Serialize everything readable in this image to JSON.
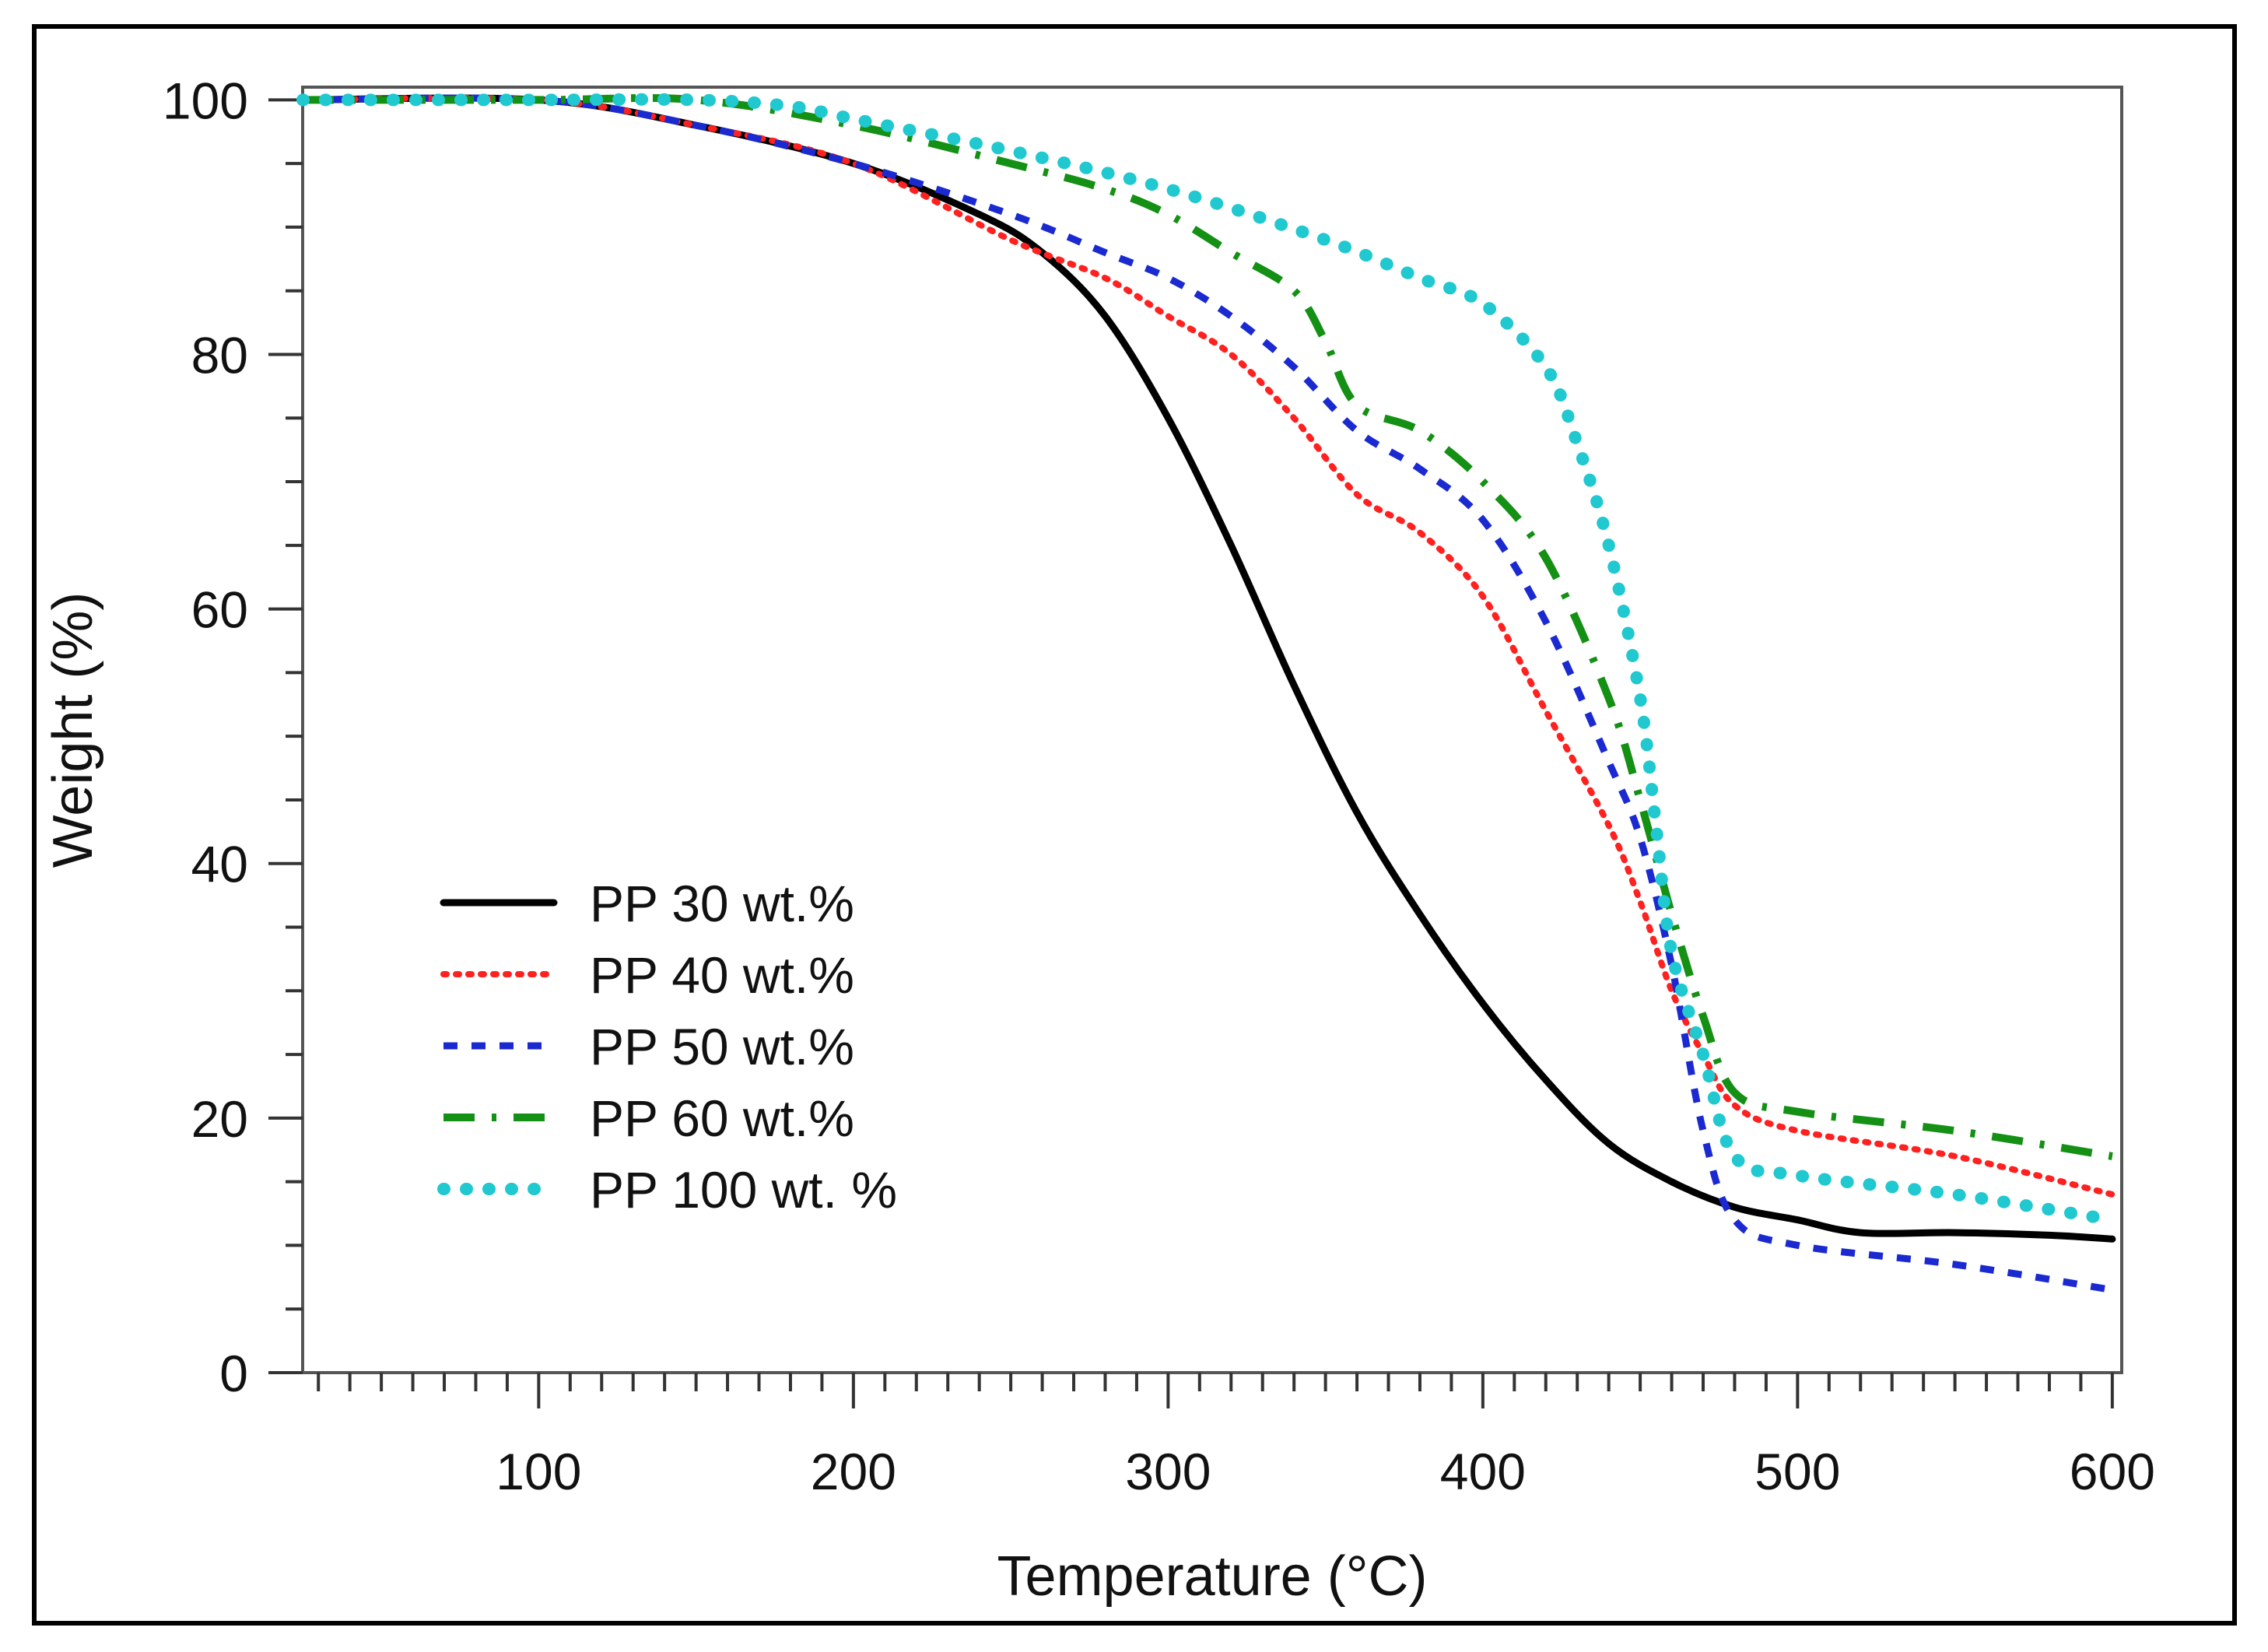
{
  "chart_data": {
    "type": "line",
    "title": "",
    "xlabel": "Temperature (°C)",
    "ylabel": "Weight (%)",
    "xlim": [
      25,
      603
    ],
    "ylim": [
      0,
      101
    ],
    "xticks": [
      100,
      200,
      300,
      400,
      500,
      600
    ],
    "yticks": [
      0,
      20,
      40,
      60,
      80,
      100
    ],
    "grid": false,
    "legend_position": "bottom-left",
    "series": [
      {
        "name": "PP 30 wt.%",
        "color": "#000000",
        "style": "solid",
        "x": [
          25,
          100,
          150,
          200,
          240,
          260,
          280,
          300,
          320,
          340,
          360,
          380,
          400,
          420,
          440,
          460,
          480,
          500,
          520,
          550,
          580,
          600
        ],
        "y": [
          100,
          100,
          98,
          95,
          91,
          88,
          83,
          75,
          65,
          54,
          44,
          36,
          29,
          23,
          18,
          15,
          13,
          12,
          11,
          11,
          10.8,
          10.5
        ]
      },
      {
        "name": "PP 40 wt.%",
        "color": "#ff2020",
        "style": "dotted",
        "x": [
          25,
          100,
          150,
          200,
          250,
          280,
          300,
          320,
          340,
          360,
          380,
          400,
          420,
          440,
          450,
          460,
          470,
          480,
          500,
          550,
          600
        ],
        "y": [
          100,
          100,
          98,
          95,
          89,
          86,
          83,
          80,
          75,
          69,
          66,
          61,
          52,
          43,
          37,
          30,
          25,
          21,
          19,
          17,
          14
        ]
      },
      {
        "name": "PP 50 wt.%",
        "color": "#1a2ad0",
        "style": "dashed",
        "x": [
          25,
          100,
          150,
          200,
          250,
          280,
          300,
          320,
          340,
          360,
          380,
          400,
          420,
          440,
          450,
          460,
          470,
          480,
          500,
          550,
          600
        ],
        "y": [
          100,
          100,
          98,
          95,
          91,
          88,
          86,
          83,
          79,
          74,
          71,
          67,
          59,
          48,
          42,
          32,
          19,
          12,
          10,
          8.5,
          6.5
        ]
      },
      {
        "name": "PP 60 wt.%",
        "color": "#149014",
        "style": "dashdot",
        "x": [
          25,
          100,
          150,
          200,
          250,
          280,
          300,
          320,
          340,
          350,
          360,
          380,
          400,
          420,
          440,
          450,
          460,
          470,
          480,
          500,
          550,
          600
        ],
        "y": [
          100,
          100,
          100,
          98,
          95,
          93,
          91,
          88,
          85,
          81,
          76,
          74,
          70,
          64,
          53,
          45,
          36,
          28,
          22,
          20.5,
          19,
          17
        ]
      },
      {
        "name": "PP 100 wt. %",
        "color": "#20c8d0",
        "style": "dotted-thick",
        "x": [
          25,
          100,
          150,
          180,
          200,
          250,
          300,
          350,
          380,
          400,
          420,
          430,
          440,
          450,
          455,
          460,
          470,
          480,
          500,
          550,
          600
        ],
        "y": [
          100,
          100,
          100,
          99.5,
          98.5,
          96,
          93,
          89,
          86,
          84,
          79,
          73,
          65,
          53,
          43,
          33,
          25,
          17,
          15.5,
          14,
          12
        ]
      }
    ]
  }
}
